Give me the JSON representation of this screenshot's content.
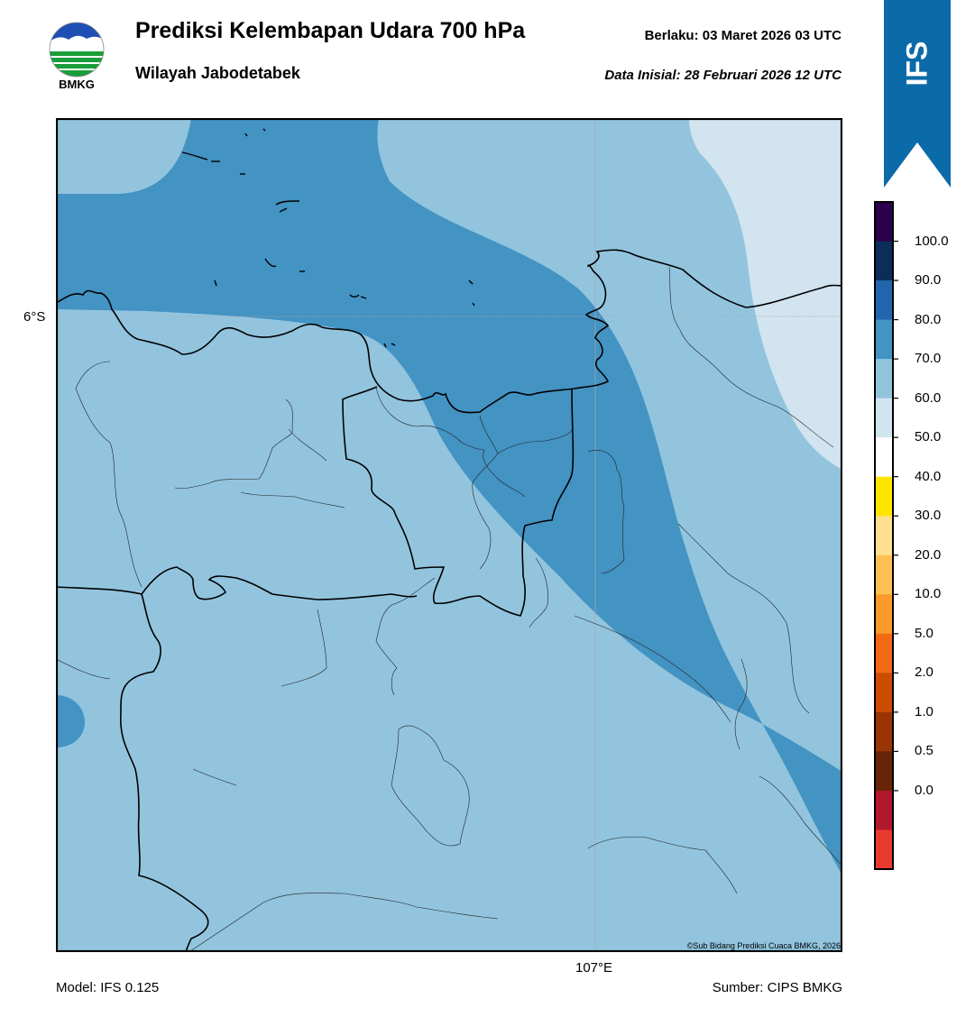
{
  "header": {
    "title": "Prediksi Kelembapan Udara 700 hPa",
    "subtitle": "Wilayah Jabodetabek",
    "valid_label": "Berlaku:  03 Maret 2026 03 UTC",
    "initial_label": "Data Inisial:  28 Februari 2026 12 UTC",
    "logo_text": "BMKG"
  },
  "ribbon": {
    "label": "IFS",
    "color": "#0b6aa8"
  },
  "map": {
    "lat_label": "6°S",
    "lon_label": "107°E",
    "copyright": "©Sub Bidang Prediksi Cuaca BMKG, 2026",
    "fill_colors": {
      "light": "#d1e4f0",
      "mid": "#92c4de",
      "dark": "#4393c3"
    }
  },
  "footer": {
    "model": "Model: IFS 0.125",
    "source": "Sumber: CIPS BMKG"
  },
  "colorbar": {
    "ticks": [
      "100.0",
      "90.0",
      "80.0",
      "70.0",
      "60.0",
      "50.0",
      "40.0",
      "30.0",
      "20.0",
      "10.0",
      "5.0",
      "2.0",
      "1.0",
      "0.5",
      "0.0"
    ],
    "colors": [
      "#2d004b",
      "#0b2d5a",
      "#2166ac",
      "#4393c3",
      "#92c4de",
      "#d1e5f0",
      "#ffffff",
      "#ffe600",
      "#fee090",
      "#fdc053",
      "#fb9a29",
      "#f16913",
      "#cc4c02",
      "#993404",
      "#662506",
      "#b2182b",
      "#e83a2f"
    ]
  }
}
